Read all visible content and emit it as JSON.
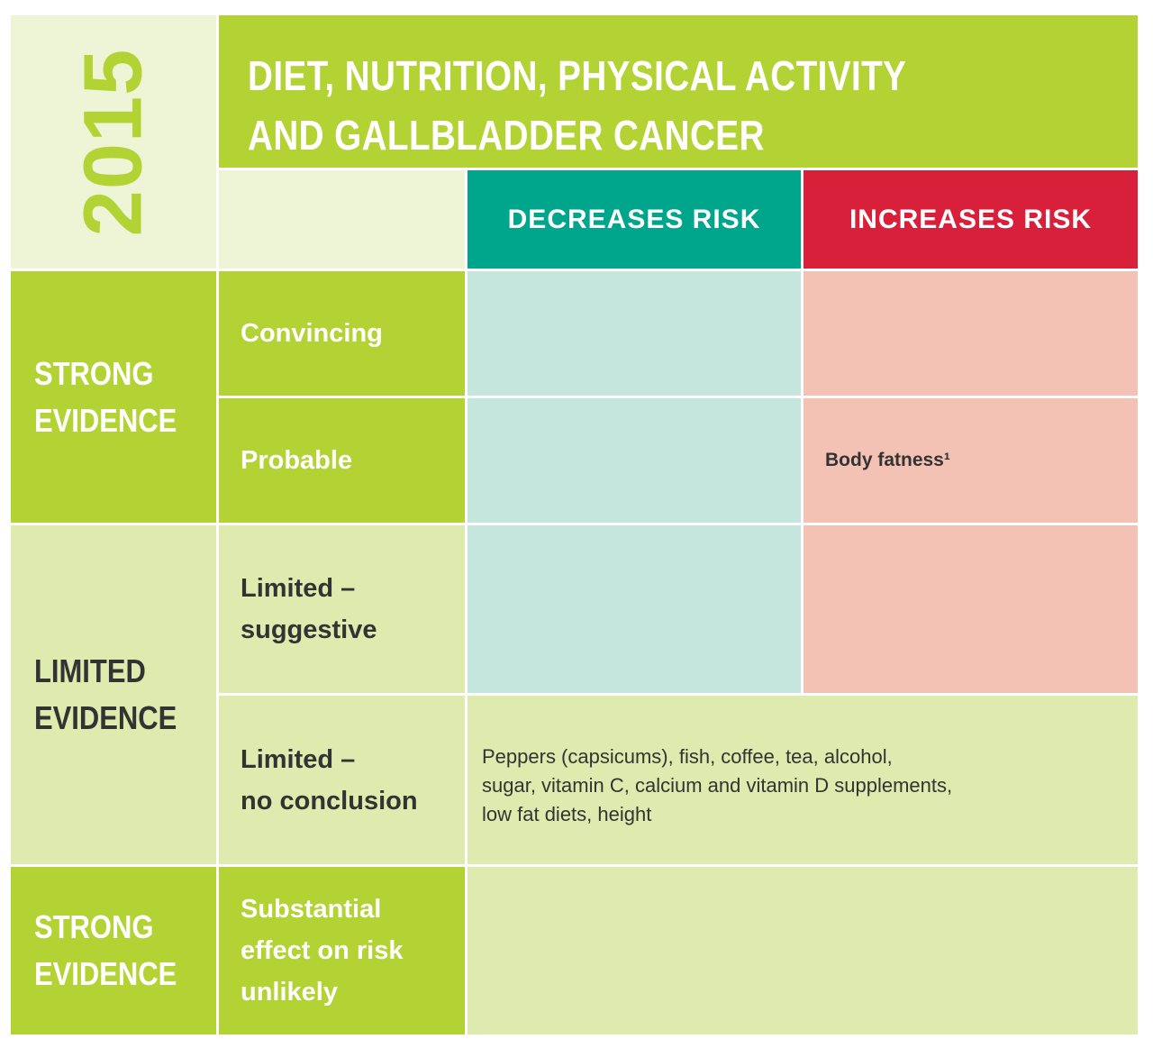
{
  "year": "2015",
  "title": {
    "line1": "DIET, NUTRITION, PHYSICAL ACTIVITY",
    "line2": "AND GALLBLADDER CANCER"
  },
  "columns": {
    "decreases": "DECREASES RISK",
    "increases": "INCREASES RISK"
  },
  "groups": [
    {
      "line1": "STRONG",
      "line2": "EVIDENCE"
    },
    {
      "line1": "LIMITED",
      "line2": "EVIDENCE"
    },
    {
      "line1": "STRONG",
      "line2": "EVIDENCE"
    }
  ],
  "rows": {
    "convincing": {
      "label": "Convincing",
      "decreases": "",
      "increases": ""
    },
    "probable": {
      "label": "Probable",
      "decreases": "",
      "increases": "Body fatness¹"
    },
    "limited_suggestive": {
      "label_line1": "Limited –",
      "label_line2": "suggestive",
      "decreases": "",
      "increases": ""
    },
    "limited_no_conclusion": {
      "label_line1": "Limited –",
      "label_line2": "no conclusion",
      "text_line1": "Peppers (capsicums), fish, coffee, tea, alcohol,",
      "text_line2": "sugar, vitamin C, calcium and vitamin D supplements,",
      "text_line3": "low fat diets, height"
    },
    "substantial": {
      "label_line1": "Substantial",
      "label_line2": "effect on risk",
      "label_line3": "unlikely",
      "text": ""
    }
  },
  "colors": {
    "green": "#b3d334",
    "pale_green": "#eef4d6",
    "limited_green": "#deeaae",
    "teal": "#00a68c",
    "red": "#d9203a",
    "teal_light": "#c4e6dc",
    "pink_light": "#f4c2b4"
  }
}
